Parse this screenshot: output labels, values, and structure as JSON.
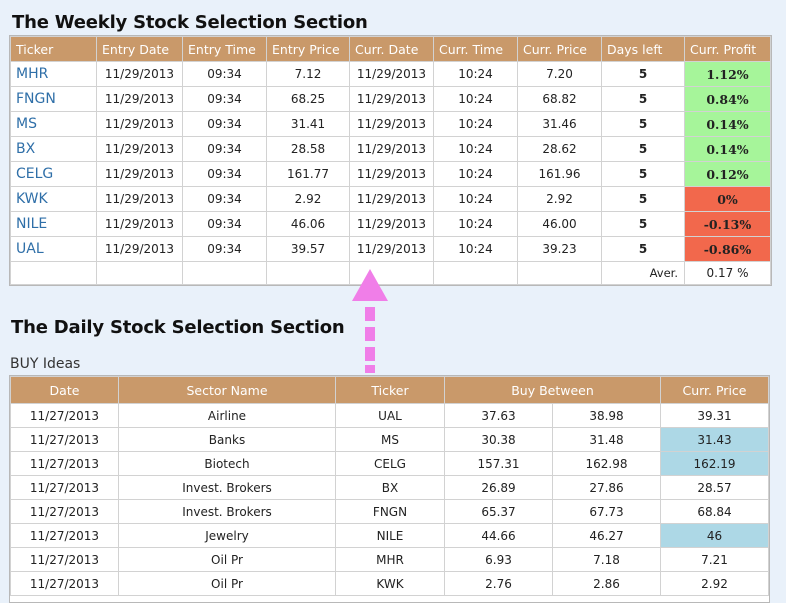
{
  "weekly": {
    "title": "The Weekly Stock Selection Section",
    "columns": [
      "Ticker",
      "Entry Date",
      "Entry Time",
      "Entry Price",
      "Curr. Date",
      "Curr. Time",
      "Curr. Price",
      "Days left",
      "Curr. Profit"
    ],
    "rows": [
      {
        "ticker": "MHR",
        "entry_date": "11/29/2013",
        "entry_time": "09:34",
        "entry_price": "7.12",
        "curr_date": "11/29/2013",
        "curr_time": "10:24",
        "curr_price": "7.20",
        "days_left": "5",
        "profit": "1.12%",
        "trend": "pos"
      },
      {
        "ticker": "FNGN",
        "entry_date": "11/29/2013",
        "entry_time": "09:34",
        "entry_price": "68.25",
        "curr_date": "11/29/2013",
        "curr_time": "10:24",
        "curr_price": "68.82",
        "days_left": "5",
        "profit": "0.84%",
        "trend": "pos"
      },
      {
        "ticker": "MS",
        "entry_date": "11/29/2013",
        "entry_time": "09:34",
        "entry_price": "31.41",
        "curr_date": "11/29/2013",
        "curr_time": "10:24",
        "curr_price": "31.46",
        "days_left": "5",
        "profit": "0.14%",
        "trend": "pos"
      },
      {
        "ticker": "BX",
        "entry_date": "11/29/2013",
        "entry_time": "09:34",
        "entry_price": "28.58",
        "curr_date": "11/29/2013",
        "curr_time": "10:24",
        "curr_price": "28.62",
        "days_left": "5",
        "profit": "0.14%",
        "trend": "pos"
      },
      {
        "ticker": "CELG",
        "entry_date": "11/29/2013",
        "entry_time": "09:34",
        "entry_price": "161.77",
        "curr_date": "11/29/2013",
        "curr_time": "10:24",
        "curr_price": "161.96",
        "days_left": "5",
        "profit": "0.12%",
        "trend": "pos"
      },
      {
        "ticker": "KWK",
        "entry_date": "11/29/2013",
        "entry_time": "09:34",
        "entry_price": "2.92",
        "curr_date": "11/29/2013",
        "curr_time": "10:24",
        "curr_price": "2.92",
        "days_left": "5",
        "profit": "0%",
        "trend": "neg"
      },
      {
        "ticker": "NILE",
        "entry_date": "11/29/2013",
        "entry_time": "09:34",
        "entry_price": "46.06",
        "curr_date": "11/29/2013",
        "curr_time": "10:24",
        "curr_price": "46.00",
        "days_left": "5",
        "profit": "-0.13%",
        "trend": "neg"
      },
      {
        "ticker": "UAL",
        "entry_date": "11/29/2013",
        "entry_time": "09:34",
        "entry_price": "39.57",
        "curr_date": "11/29/2013",
        "curr_time": "10:24",
        "curr_price": "39.23",
        "days_left": "5",
        "profit": "-0.86%",
        "trend": "neg"
      }
    ],
    "average_label": "Aver.",
    "average_value": "0.17 %"
  },
  "daily": {
    "title": "The Daily Stock Selection Section",
    "subtitle": "BUY Ideas",
    "columns": [
      "Date",
      "Sector Name",
      "Ticker",
      "Buy Between",
      "Curr. Price"
    ],
    "rows": [
      {
        "date": "11/27/2013",
        "sector": "Airline",
        "ticker": "UAL",
        "buy_low": "37.63",
        "buy_high": "38.98",
        "curr_price": "39.31",
        "highlight": false
      },
      {
        "date": "11/27/2013",
        "sector": "Banks",
        "ticker": "MS",
        "buy_low": "30.38",
        "buy_high": "31.48",
        "curr_price": "31.43",
        "highlight": true
      },
      {
        "date": "11/27/2013",
        "sector": "Biotech",
        "ticker": "CELG",
        "buy_low": "157.31",
        "buy_high": "162.98",
        "curr_price": "162.19",
        "highlight": true
      },
      {
        "date": "11/27/2013",
        "sector": "Invest. Brokers",
        "ticker": "BX",
        "buy_low": "26.89",
        "buy_high": "27.86",
        "curr_price": "28.57",
        "highlight": false
      },
      {
        "date": "11/27/2013",
        "sector": "Invest. Brokers",
        "ticker": "FNGN",
        "buy_low": "65.37",
        "buy_high": "67.73",
        "curr_price": "68.84",
        "highlight": false
      },
      {
        "date": "11/27/2013",
        "sector": "Jewelry",
        "ticker": "NILE",
        "buy_low": "44.66",
        "buy_high": "46.27",
        "curr_price": "46",
        "highlight": true
      },
      {
        "date": "11/27/2013",
        "sector": "Oil Pr",
        "ticker": "MHR",
        "buy_low": "6.93",
        "buy_high": "7.18",
        "curr_price": "7.21",
        "highlight": false
      },
      {
        "date": "11/27/2013",
        "sector": "Oil Pr",
        "ticker": "KWK",
        "buy_low": "2.76",
        "buy_high": "2.86",
        "curr_price": "2.92",
        "highlight": false
      }
    ]
  },
  "colors": {
    "header_bg": "#c9996a",
    "positive": "#a6f59a",
    "negative": "#f2684c",
    "highlight": "#add8e6",
    "arrow": "#f07ee8",
    "ticker_link": "#2f6fa8"
  },
  "arrow_icon": "dashed-up-arrow-icon"
}
